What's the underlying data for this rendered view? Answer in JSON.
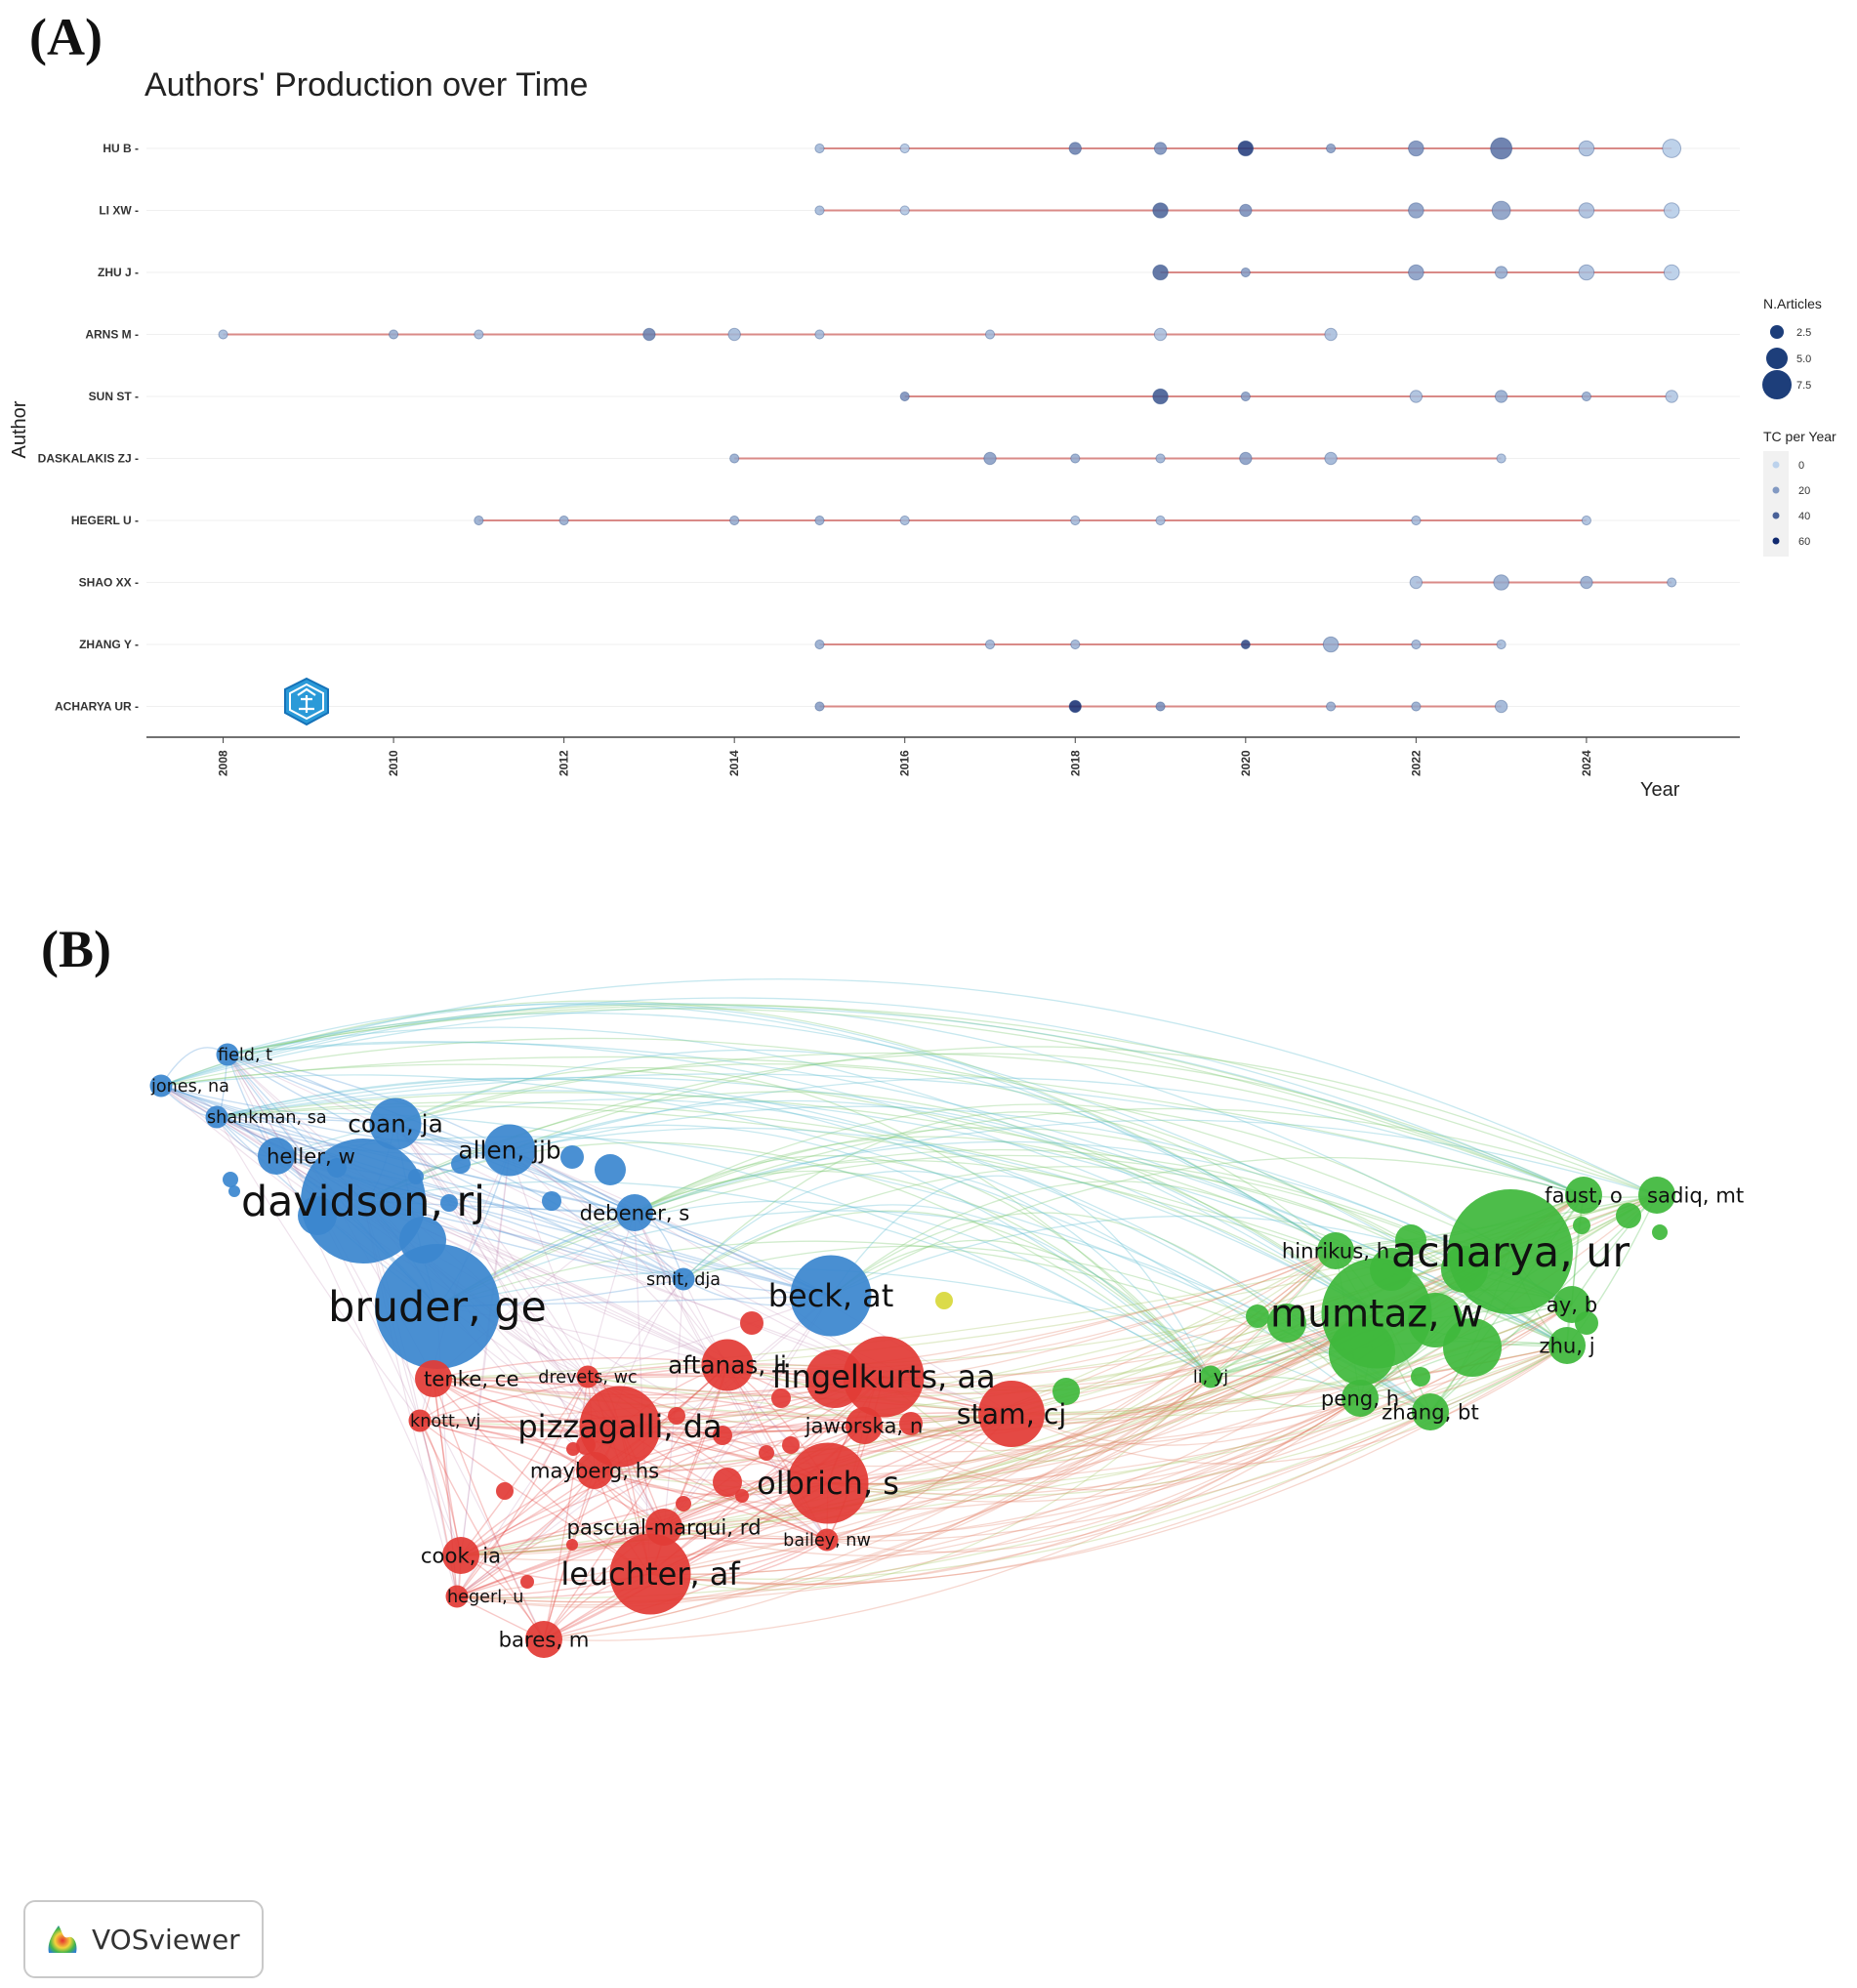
{
  "panel_a_label": "(A)",
  "panel_b_label": "(B)",
  "vosviewer_label": "VOSviewer",
  "colors": {
    "line": "#d98a87",
    "dot": "#2c5c9c",
    "blue": "#3b87cf",
    "red": "#e23b36",
    "green": "#3fb83c",
    "yellow": "#d8d83a"
  },
  "chart_data": [
    {
      "type": "scatter",
      "title": "Authors' Production over Time",
      "xlabel": "Year",
      "ylabel": "Author",
      "xlim": [
        2007.1,
        2025.8
      ],
      "x_ticks": [
        "2008",
        "2010",
        "2012",
        "2014",
        "2016",
        "2018",
        "2020",
        "2022",
        "2024"
      ],
      "legend_size_title": "N.Articles",
      "legend_size_values": [
        "2.5",
        "5.0",
        "7.5"
      ],
      "legend_color_title": "TC per Year",
      "legend_color_values": [
        "0",
        "20",
        "40",
        "60"
      ],
      "series": [
        {
          "name": "HU B",
          "points": [
            [
              2015,
              1,
              10
            ],
            [
              2016,
              1,
              5
            ],
            [
              2018,
              2,
              30
            ],
            [
              2019,
              2,
              25
            ],
            [
              2020,
              3,
              55
            ],
            [
              2021,
              1,
              20
            ],
            [
              2022,
              3,
              25
            ],
            [
              2023,
              5,
              35
            ],
            [
              2024,
              3,
              8
            ],
            [
              2025,
              4,
              3
            ]
          ]
        },
        {
          "name": "LI XW",
          "points": [
            [
              2015,
              1,
              10
            ],
            [
              2016,
              1,
              5
            ],
            [
              2019,
              3,
              40
            ],
            [
              2020,
              2,
              25
            ],
            [
              2022,
              3,
              20
            ],
            [
              2023,
              4,
              20
            ],
            [
              2024,
              3,
              8
            ],
            [
              2025,
              3,
              3
            ]
          ]
        },
        {
          "name": "ZHU J",
          "points": [
            [
              2019,
              3,
              40
            ],
            [
              2020,
              1,
              20
            ],
            [
              2022,
              3,
              20
            ],
            [
              2023,
              2,
              15
            ],
            [
              2024,
              3,
              8
            ],
            [
              2025,
              3,
              3
            ]
          ]
        },
        {
          "name": "ARNS M",
          "points": [
            [
              2008,
              1,
              10
            ],
            [
              2010,
              1,
              15
            ],
            [
              2011,
              1,
              10
            ],
            [
              2013,
              2,
              30
            ],
            [
              2014,
              2,
              10
            ],
            [
              2015,
              1,
              10
            ],
            [
              2017,
              1,
              10
            ],
            [
              2019,
              2,
              8
            ],
            [
              2021,
              2,
              8
            ]
          ]
        },
        {
          "name": "SUN ST",
          "points": [
            [
              2016,
              1,
              25
            ],
            [
              2019,
              3,
              45
            ],
            [
              2020,
              1,
              20
            ],
            [
              2022,
              2,
              8
            ],
            [
              2023,
              2,
              15
            ],
            [
              2024,
              1,
              15
            ],
            [
              2025,
              2,
              5
            ]
          ]
        },
        {
          "name": "DASKALAKIS ZJ",
          "points": [
            [
              2014,
              1,
              15
            ],
            [
              2017,
              2,
              20
            ],
            [
              2018,
              1,
              15
            ],
            [
              2019,
              1,
              12
            ],
            [
              2020,
              2,
              20
            ],
            [
              2021,
              2,
              12
            ],
            [
              2023,
              1,
              8
            ]
          ]
        },
        {
          "name": "HEGERL U",
          "points": [
            [
              2011,
              1,
              15
            ],
            [
              2012,
              1,
              15
            ],
            [
              2014,
              1,
              15
            ],
            [
              2015,
              1,
              15
            ],
            [
              2016,
              1,
              10
            ],
            [
              2018,
              1,
              10
            ],
            [
              2019,
              1,
              10
            ],
            [
              2022,
              1,
              10
            ],
            [
              2024,
              1,
              8
            ]
          ]
        },
        {
          "name": "SHAO XX",
          "points": [
            [
              2022,
              2,
              8
            ],
            [
              2023,
              3,
              15
            ],
            [
              2024,
              2,
              15
            ],
            [
              2025,
              1,
              10
            ]
          ]
        },
        {
          "name": "ZHANG Y",
          "points": [
            [
              2015,
              1,
              15
            ],
            [
              2017,
              1,
              12
            ],
            [
              2018,
              1,
              12
            ],
            [
              2020,
              1,
              50
            ],
            [
              2021,
              3,
              15
            ],
            [
              2022,
              1,
              12
            ],
            [
              2023,
              1,
              10
            ]
          ]
        },
        {
          "name": "ACHARYA UR",
          "points": [
            [
              2015,
              1,
              20
            ],
            [
              2018,
              2,
              60
            ],
            [
              2019,
              1,
              25
            ],
            [
              2021,
              1,
              15
            ],
            [
              2022,
              1,
              15
            ],
            [
              2023,
              2,
              12
            ]
          ]
        }
      ]
    },
    {
      "type": "network",
      "clusters": [
        "blue",
        "red",
        "green",
        "yellow"
      ],
      "nodes": [
        {
          "label": "field, t",
          "cluster": "blue",
          "weight": 1
        },
        {
          "label": "jones, na",
          "cluster": "blue",
          "weight": 1
        },
        {
          "label": "shankman, sa",
          "cluster": "blue",
          "weight": 1
        },
        {
          "label": "coan, ja",
          "cluster": "blue",
          "weight": 3
        },
        {
          "label": "allen, jjb",
          "cluster": "blue",
          "weight": 3
        },
        {
          "label": "heller, w",
          "cluster": "blue",
          "weight": 2
        },
        {
          "label": "davidson, rj",
          "cluster": "blue",
          "weight": 8
        },
        {
          "label": "debener, s",
          "cluster": "blue",
          "weight": 2
        },
        {
          "label": "smit, dja",
          "cluster": "blue",
          "weight": 1
        },
        {
          "label": "bruder, ge",
          "cluster": "blue",
          "weight": 8
        },
        {
          "label": "beck, at",
          "cluster": "blue",
          "weight": 5
        },
        {
          "label": "aftanas, li",
          "cluster": "red",
          "weight": 3
        },
        {
          "label": "tenke, ce",
          "cluster": "red",
          "weight": 2
        },
        {
          "label": "drevets, wc",
          "cluster": "red",
          "weight": 1
        },
        {
          "label": "knott, vj",
          "cluster": "red",
          "weight": 1
        },
        {
          "label": "fingelkurts, aa",
          "cluster": "red",
          "weight": 5
        },
        {
          "label": "stam, cj",
          "cluster": "red",
          "weight": 4
        },
        {
          "label": "pizzagalli, da",
          "cluster": "red",
          "weight": 5
        },
        {
          "label": "jaworska, n",
          "cluster": "red",
          "weight": 2
        },
        {
          "label": "mayberg, hs",
          "cluster": "red",
          "weight": 2
        },
        {
          "label": "olbrich, s",
          "cluster": "red",
          "weight": 5
        },
        {
          "label": "pascual-marqui, rd",
          "cluster": "red",
          "weight": 2
        },
        {
          "label": "bailey, nw",
          "cluster": "red",
          "weight": 1
        },
        {
          "label": "cook, ia",
          "cluster": "red",
          "weight": 2
        },
        {
          "label": "leuchter, af",
          "cluster": "red",
          "weight": 5
        },
        {
          "label": "hegerl, u",
          "cluster": "red",
          "weight": 1
        },
        {
          "label": "bares, m",
          "cluster": "red",
          "weight": 2
        },
        {
          "label": "faust, o",
          "cluster": "green",
          "weight": 2
        },
        {
          "label": "sadiq, mt",
          "cluster": "green",
          "weight": 2
        },
        {
          "label": "hinrikus, h",
          "cluster": "green",
          "weight": 2
        },
        {
          "label": "acharya, ur",
          "cluster": "green",
          "weight": 8
        },
        {
          "label": "mumtaz, w",
          "cluster": "green",
          "weight": 7
        },
        {
          "label": "ay, b",
          "cluster": "green",
          "weight": 2
        },
        {
          "label": "zhu, j",
          "cluster": "green",
          "weight": 2
        },
        {
          "label": "li, yj",
          "cluster": "green",
          "weight": 1
        },
        {
          "label": "peng, h",
          "cluster": "green",
          "weight": 2
        },
        {
          "label": "zhang, bt",
          "cluster": "green",
          "weight": 2
        }
      ]
    }
  ]
}
